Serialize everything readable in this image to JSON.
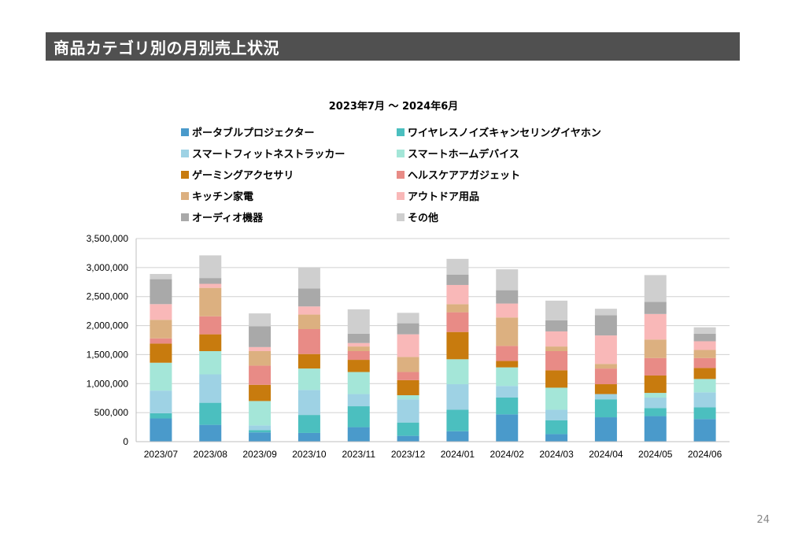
{
  "header": {
    "title": "商品カテゴリ別の月別売上状況"
  },
  "page": {
    "number": "24"
  },
  "chart_data": {
    "type": "bar",
    "stacked": true,
    "title": "2023年7月 ～ 2024年6月",
    "xlabel": "",
    "ylabel": "",
    "ylim": [
      0,
      3500000
    ],
    "y_ticks": [
      "0",
      "500,000",
      "1,000,000",
      "1,500,000",
      "2,000,000",
      "2,500,000",
      "3,000,000",
      "3,500,000"
    ],
    "y_tick_values": [
      0,
      500000,
      1000000,
      1500000,
      2000000,
      2500000,
      3000000,
      3500000
    ],
    "grid": true,
    "legend_position": "top",
    "categories": [
      "2023/07",
      "2023/08",
      "2023/09",
      "2023/10",
      "2023/11",
      "2023/12",
      "2024/01",
      "2024/02",
      "2024/03",
      "2024/04",
      "2024/05",
      "2024/06"
    ],
    "series": [
      {
        "name": "ポータブルプロジェクター",
        "color": "#4a9acb",
        "values": [
          400000,
          290000,
          160000,
          150000,
          250000,
          100000,
          180000,
          470000,
          130000,
          420000,
          440000,
          390000
        ]
      },
      {
        "name": "ワイヤレスノイズキャンセリングイヤホン",
        "color": "#4bbfbf",
        "values": [
          90000,
          380000,
          40000,
          310000,
          360000,
          230000,
          370000,
          290000,
          240000,
          310000,
          140000,
          200000
        ]
      },
      {
        "name": "スマートフィットネストラッカー",
        "color": "#9ed2e4",
        "values": [
          390000,
          490000,
          80000,
          430000,
          210000,
          400000,
          440000,
          200000,
          180000,
          90000,
          180000,
          260000
        ]
      },
      {
        "name": "スマートホームデバイス",
        "color": "#a4e6d8",
        "values": [
          480000,
          400000,
          420000,
          370000,
          380000,
          70000,
          430000,
          320000,
          380000,
          0,
          80000,
          230000
        ]
      },
      {
        "name": "ゲーミングアクセサリ",
        "color": "#c87b0e",
        "values": [
          330000,
          290000,
          280000,
          250000,
          210000,
          260000,
          470000,
          110000,
          300000,
          170000,
          300000,
          190000
        ]
      },
      {
        "name": "ヘルスケアアガジェット",
        "color": "#e88b86",
        "values": [
          90000,
          310000,
          330000,
          430000,
          150000,
          140000,
          340000,
          260000,
          330000,
          270000,
          300000,
          170000
        ]
      },
      {
        "name": "キッチン家電",
        "color": "#dcb080",
        "values": [
          320000,
          490000,
          250000,
          250000,
          80000,
          260000,
          140000,
          490000,
          80000,
          80000,
          320000,
          140000
        ]
      },
      {
        "name": "アウトドア用品",
        "color": "#f9b8b8",
        "values": [
          270000,
          70000,
          70000,
          140000,
          60000,
          390000,
          330000,
          240000,
          260000,
          490000,
          440000,
          150000
        ]
      },
      {
        "name": "オーディオ機器",
        "color": "#a9a9a9",
        "values": [
          430000,
          100000,
          360000,
          310000,
          160000,
          190000,
          180000,
          230000,
          190000,
          350000,
          210000,
          130000
        ]
      },
      {
        "name": "その他",
        "color": "#cfcfcf",
        "values": [
          90000,
          390000,
          220000,
          360000,
          420000,
          180000,
          270000,
          360000,
          340000,
          110000,
          460000,
          110000
        ]
      }
    ]
  }
}
